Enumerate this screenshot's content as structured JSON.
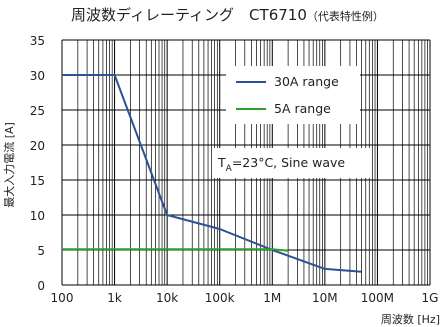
{
  "chart_data": {
    "type": "line",
    "title_main": "周波数ディレーティング　CT6710",
    "title_note": "（代表特性例）",
    "xlabel": "周波数 [Hz]",
    "ylabel": "最大入力電流 [A]",
    "x_scale": "log",
    "xlim": [
      100,
      1000000000
    ],
    "ylim": [
      0,
      35
    ],
    "x_ticks": [
      {
        "value": 100,
        "label": "100"
      },
      {
        "value": 1000,
        "label": "1k"
      },
      {
        "value": 10000,
        "label": "10k"
      },
      {
        "value": 100000,
        "label": "100k"
      },
      {
        "value": 1000000,
        "label": "1M"
      },
      {
        "value": 10000000,
        "label": "10M"
      },
      {
        "value": 100000000,
        "label": "100M"
      },
      {
        "value": 1000000000,
        "label": "1G"
      }
    ],
    "y_ticks": [
      0,
      5,
      10,
      15,
      20,
      25,
      30,
      35
    ],
    "grid": true,
    "series": [
      {
        "name": "30A range",
        "color": "#2f4f96",
        "points": [
          [
            100,
            30
          ],
          [
            1000,
            30
          ],
          [
            10000,
            10
          ],
          [
            100000,
            8
          ],
          [
            1000000,
            5
          ],
          [
            10000000,
            2.3
          ],
          [
            50000000,
            1.9
          ]
        ]
      },
      {
        "name": "5A range",
        "color": "#2aa02a",
        "points": [
          [
            100,
            5.1
          ],
          [
            1000000,
            5.1
          ],
          [
            2000000,
            4.9
          ]
        ]
      }
    ],
    "annotation": {
      "prefix": "T",
      "subscript": "A",
      "rest": "=23°C, Sine wave"
    },
    "legend_position": "top-right"
  }
}
